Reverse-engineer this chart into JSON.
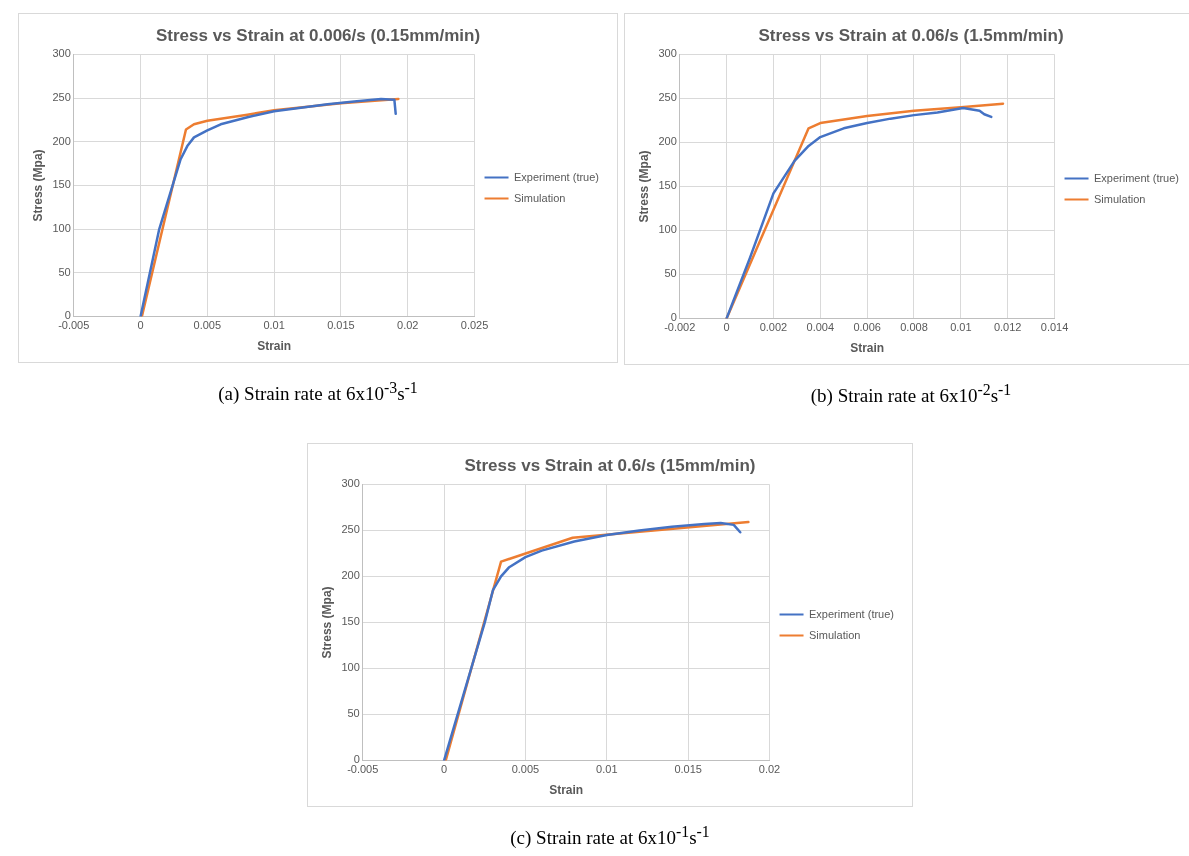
{
  "chart_data": [
    {
      "type": "line",
      "title": "Stress vs Strain at 0.006/s (0.15mm/min)",
      "xlabel": "Strain",
      "ylabel": "Stress (Mpa)",
      "xlim": [
        -0.005,
        0.025
      ],
      "xticks": [
        -0.005,
        0,
        0.005,
        0.01,
        0.015,
        0.02,
        0.025
      ],
      "ylim": [
        0,
        300
      ],
      "yticks": [
        0,
        50,
        100,
        150,
        200,
        250,
        300
      ],
      "grid": true,
      "legend": "right",
      "marker": "none",
      "annotations": [
        "(a) Strain rate at 6x10$^{-3}$s$^{-1}$"
      ],
      "series": [
        {
          "name": "Experiment (true)",
          "color": "#4472c4",
          "x": [
            0,
            0.0014,
            0.0024,
            0.003,
            0.0035,
            0.004,
            0.005,
            0.006,
            0.008,
            0.01,
            0.012,
            0.014,
            0.016,
            0.018,
            0.019,
            0.0191
          ],
          "values": [
            0,
            100,
            150,
            180,
            195,
            205,
            213,
            220,
            228,
            235,
            239,
            243,
            246,
            249,
            248,
            232
          ]
        },
        {
          "name": "Simulation",
          "color": "#ed7d31",
          "x": [
            0.0001,
            0.0034,
            0.004,
            0.005,
            0.008,
            0.01,
            0.015,
            0.0193
          ],
          "values": [
            0,
            214,
            220,
            224,
            231,
            236,
            244,
            249
          ]
        }
      ]
    },
    {
      "type": "line",
      "title": "Stress vs Strain at 0.06/s (1.5mm/min)",
      "xlabel": "Strain",
      "ylabel": "Stress (Mpa)",
      "xlim": [
        -0.002,
        0.014
      ],
      "xticks": [
        -0.002,
        0,
        0.002,
        0.004,
        0.006,
        0.008,
        0.01,
        0.012,
        0.014
      ],
      "ylim": [
        0,
        300
      ],
      "yticks": [
        0,
        50,
        100,
        150,
        200,
        250,
        300
      ],
      "grid": true,
      "legend": "right",
      "marker": "none",
      "annotations": [
        "(b) Strain rate at 6x10$^{-2}$s$^{-1}$"
      ],
      "series": [
        {
          "name": "Experiment (true)",
          "color": "#4472c4",
          "x": [
            0,
            0.001,
            0.002,
            0.0029,
            0.0035,
            0.004,
            0.005,
            0.006,
            0.007,
            0.008,
            0.009,
            0.0101,
            0.0108,
            0.011,
            0.0113
          ],
          "values": [
            0,
            69,
            142,
            179,
            196,
            206,
            216,
            222,
            227,
            231,
            234,
            239,
            236,
            232,
            229
          ]
        },
        {
          "name": "Simulation",
          "color": "#ed7d31",
          "x": [
            0,
            0.0035,
            0.004,
            0.006,
            0.008,
            0.01,
            0.0118
          ],
          "values": [
            0,
            216,
            222,
            230,
            236,
            240,
            244
          ]
        }
      ]
    },
    {
      "type": "line",
      "title": "Stress vs Strain at 0.6/s (15mm/min)",
      "xlabel": "Strain",
      "ylabel": "Stress (Mpa)",
      "xlim": [
        -0.005,
        0.02
      ],
      "xticks": [
        -0.005,
        0,
        0.005,
        0.01,
        0.015,
        0.02
      ],
      "ylim": [
        0,
        300
      ],
      "yticks": [
        0,
        50,
        100,
        150,
        200,
        250,
        300
      ],
      "grid": true,
      "legend": "right",
      "marker": "none",
      "annotations": [
        "(c) Strain rate at 6x10$^{-1}$s$^{-1}$"
      ],
      "series": [
        {
          "name": "Experiment (true)",
          "color": "#4472c4",
          "x": [
            0,
            0.0025,
            0.003,
            0.0035,
            0.004,
            0.005,
            0.006,
            0.008,
            0.01,
            0.012,
            0.014,
            0.016,
            0.017,
            0.0178,
            0.0182
          ],
          "values": [
            0,
            150,
            185,
            200,
            210,
            221,
            228,
            238,
            245,
            250,
            254,
            257,
            258,
            256,
            248
          ]
        },
        {
          "name": "Simulation",
          "color": "#ed7d31",
          "x": [
            0.0001,
            0.0035,
            0.0079,
            0.0187
          ],
          "values": [
            0,
            216,
            242,
            259
          ]
        }
      ]
    }
  ]
}
